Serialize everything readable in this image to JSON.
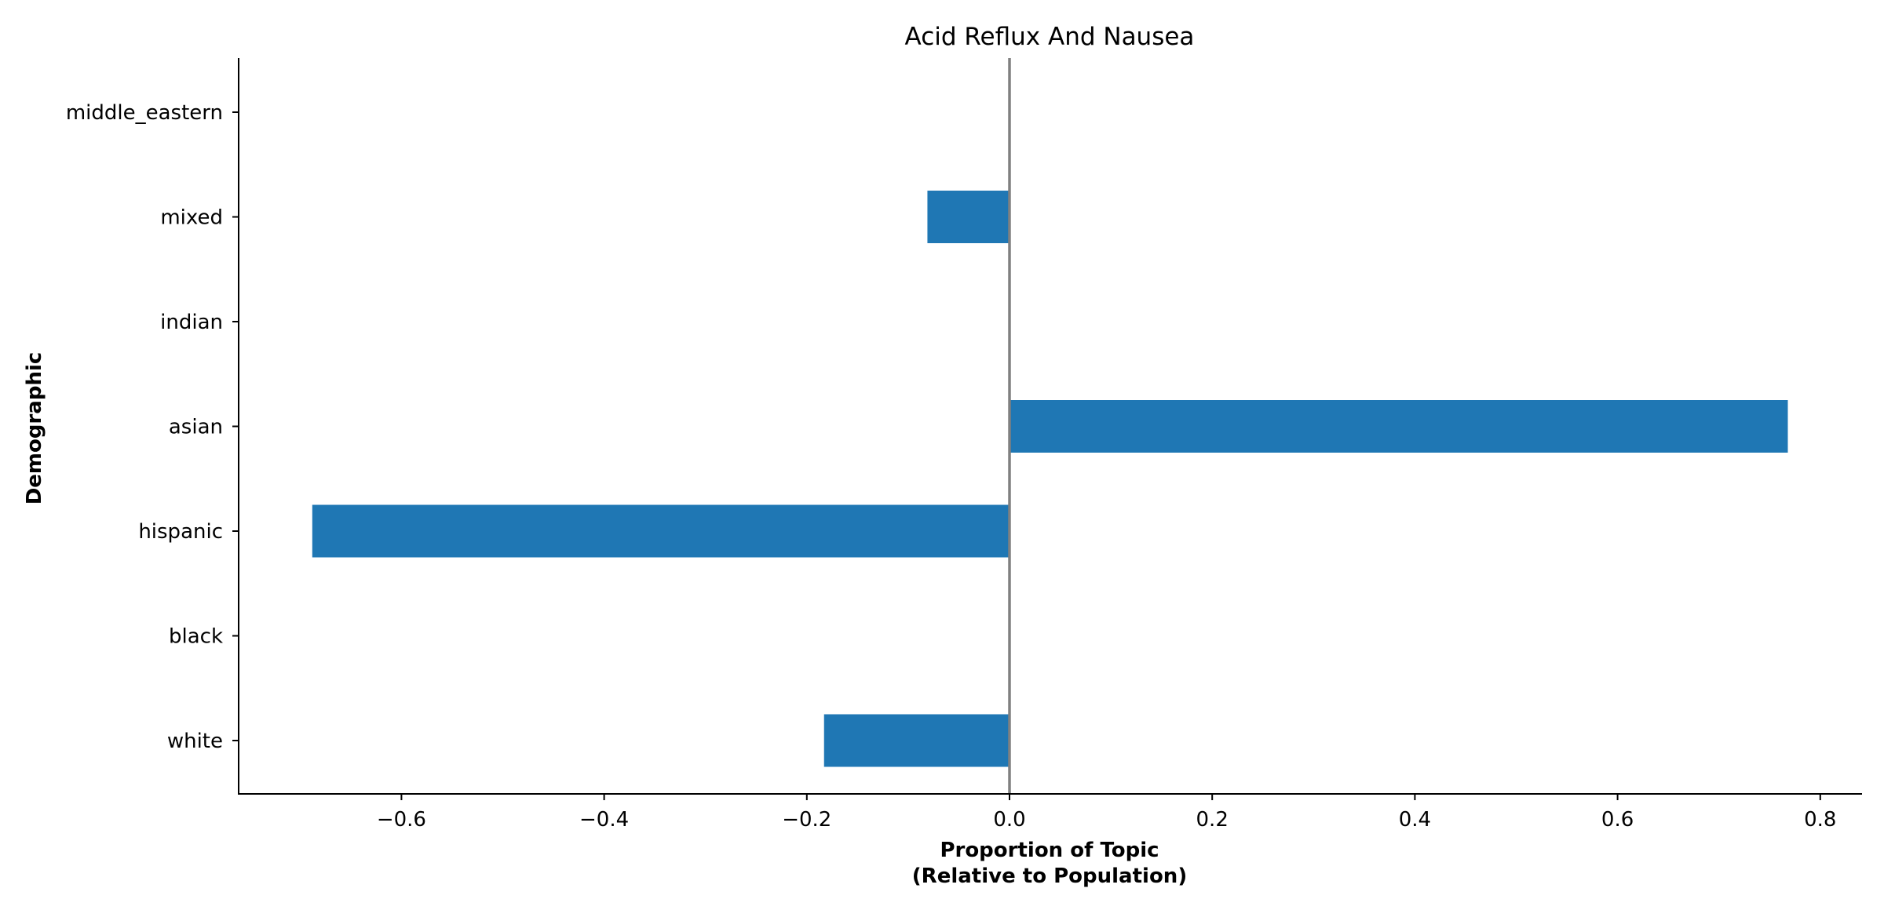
{
  "chart_data": {
    "type": "bar",
    "orientation": "horizontal",
    "title": "Acid Reflux And Nausea",
    "xlabel_line1": "Proportion of Topic",
    "xlabel_line2": "(Relative to Population)",
    "ylabel": "Demographic",
    "categories": [
      "white",
      "black",
      "hispanic",
      "asian",
      "indian",
      "mixed",
      "middle_eastern"
    ],
    "values": [
      -0.183,
      0.0,
      -0.688,
      0.768,
      0.0,
      -0.081,
      0.0
    ],
    "xlim": [
      -0.76,
      0.84
    ],
    "xticks": [
      -0.6,
      -0.4,
      -0.2,
      0.0,
      0.2,
      0.4,
      0.6,
      0.8
    ],
    "xtick_labels": [
      "−0.6",
      "−0.4",
      "−0.2",
      "0.0",
      "0.2",
      "0.4",
      "0.6",
      "0.8"
    ],
    "bar_color": "#1f77b4",
    "zero_line_color": "#808080",
    "grid": false,
    "legend": "none"
  }
}
